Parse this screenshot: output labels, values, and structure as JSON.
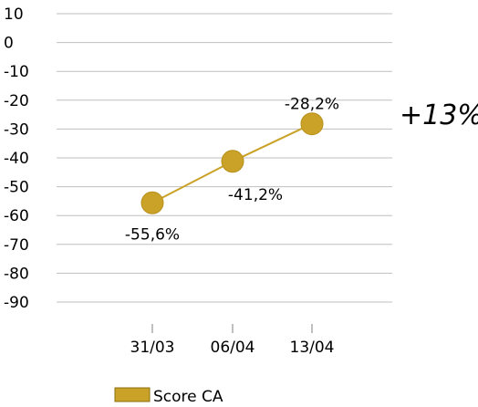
{
  "chart_data": {
    "type": "line",
    "x": [
      "31/03",
      "06/04",
      "13/04"
    ],
    "series": [
      {
        "name": "Score CA",
        "values": [
          -55.6,
          -41.2,
          -28.2
        ],
        "labels": [
          "-55,6%",
          "-41,2%",
          "-28,2%"
        ]
      }
    ],
    "y_ticks": [
      "10",
      "0",
      "-10",
      "-20",
      "-30",
      "-40",
      "-50",
      "-60",
      "-70",
      "-80",
      "-90"
    ],
    "ylim": [
      -90,
      10
    ],
    "grid": true,
    "annotation": "+13%",
    "legend_position": "bottom",
    "colors": {
      "series": "#C9A227",
      "marker_edge": "#B8901C",
      "grid": "#BFBFBF"
    }
  }
}
